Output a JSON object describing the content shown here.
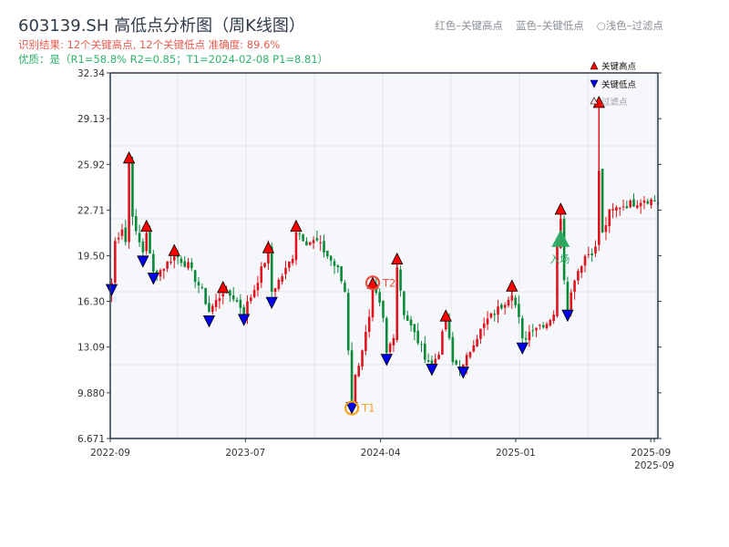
{
  "header": {
    "title": "603139.SH 高低点分析图（周K线图）",
    "result_line": "识别结果: 12个关键高点, 12个关键低点   准确度: 89.6%",
    "quality_line": "优质：是（R1=58.8%  R2=0.85；T1=2024-02-08 P1=8.81）",
    "legend_red": "红色–关键高点",
    "legend_blue": "蓝色–关键低点",
    "legend_light": "○浅色–过滤点"
  },
  "colors": {
    "up": "#e0141e",
    "down": "#0b8a3a",
    "high_marker": "#ff0000",
    "low_marker": "#0000ee",
    "entry": "#2aa860",
    "t_circle_t1": "#f5a020",
    "t_circle_t2": "#ee5040",
    "bg": "#f5f7fa"
  },
  "chart_data": {
    "type": "candlestick",
    "title": "603139.SH 高低点分析图（周K线图）",
    "grid": true,
    "legend_placement": "top-right",
    "legend": [
      "关键高点",
      "关键低点",
      "过滤点"
    ],
    "y_ticks": [
      "6.671",
      "9.880",
      "13.09",
      "16.30",
      "19.50",
      "22.71",
      "25.92",
      "29.13",
      "32.34"
    ],
    "ylim": [
      6.671,
      32.34
    ],
    "x_tick_labels": [
      "2022-09",
      "2023-07",
      "2024-04",
      "2025-01",
      "2025-09",
      "2025-09"
    ],
    "x_tick_index": [
      0,
      39,
      78,
      117,
      156,
      157
    ],
    "candle_count": 158,
    "close_path": [
      [
        0,
        17.6
      ],
      [
        1,
        20.5
      ],
      [
        3,
        21.5
      ],
      [
        4,
        20.5
      ],
      [
        5,
        26.0
      ],
      [
        6,
        22.5
      ],
      [
        7,
        21.0
      ],
      [
        9,
        19.8
      ],
      [
        10,
        21.2
      ],
      [
        11,
        19.5
      ],
      [
        12,
        18.3
      ],
      [
        14,
        18.5
      ],
      [
        16,
        19.0
      ],
      [
        18,
        19.6
      ],
      [
        22,
        18.8
      ],
      [
        26,
        17.0
      ],
      [
        28,
        15.6
      ],
      [
        30,
        16.3
      ],
      [
        32,
        17.0
      ],
      [
        35,
        16.6
      ],
      [
        38,
        15.6
      ],
      [
        41,
        17.2
      ],
      [
        45,
        19.8
      ],
      [
        46,
        17.0
      ],
      [
        50,
        18.5
      ],
      [
        52,
        19.5
      ],
      [
        53,
        21.3
      ],
      [
        56,
        20.5
      ],
      [
        59,
        20.5
      ],
      [
        62,
        19.5
      ],
      [
        65,
        18.5
      ],
      [
        67,
        17.0
      ],
      [
        68,
        13.0
      ],
      [
        69,
        9.3
      ],
      [
        70,
        11.0
      ],
      [
        72,
        13.0
      ],
      [
        74,
        15.0
      ],
      [
        75,
        17.3
      ],
      [
        77,
        16.0
      ],
      [
        78,
        15.0
      ],
      [
        79,
        12.6
      ],
      [
        81,
        14.0
      ],
      [
        82,
        18.8
      ],
      [
        84,
        15.5
      ],
      [
        87,
        14.0
      ],
      [
        90,
        12.5
      ],
      [
        92,
        11.8
      ],
      [
        94,
        12.8
      ],
      [
        96,
        15.0
      ],
      [
        98,
        12.0
      ],
      [
        101,
        11.7
      ],
      [
        104,
        13.5
      ],
      [
        108,
        15.0
      ],
      [
        112,
        16.0
      ],
      [
        115,
        17.0
      ],
      [
        117,
        15.0
      ],
      [
        118,
        13.5
      ],
      [
        121,
        14.5
      ],
      [
        125,
        14.8
      ],
      [
        127,
        15.5
      ],
      [
        128,
        20.0
      ],
      [
        129,
        22.3
      ],
      [
        130,
        18.0
      ],
      [
        131,
        15.7
      ],
      [
        133,
        18.0
      ],
      [
        136,
        19.5
      ],
      [
        139,
        20.0
      ],
      [
        140,
        25.5
      ],
      [
        141,
        21.0
      ],
      [
        143,
        22.5
      ],
      [
        146,
        23.0
      ],
      [
        150,
        23.2
      ],
      [
        153,
        23.5
      ],
      [
        157,
        23.3
      ]
    ],
    "key_highs": [
      [
        5,
        26.4
      ],
      [
        10,
        21.6
      ],
      [
        18,
        19.9
      ],
      [
        32,
        17.3
      ],
      [
        45,
        20.1
      ],
      [
        53,
        21.6
      ],
      [
        75,
        17.6
      ],
      [
        82,
        19.3
      ],
      [
        96,
        15.3
      ],
      [
        115,
        17.4
      ],
      [
        129,
        22.8
      ],
      [
        140,
        30.3
      ]
    ],
    "key_lows": [
      [
        0,
        17.1
      ],
      [
        9,
        19.1
      ],
      [
        12,
        17.9
      ],
      [
        28,
        14.9
      ],
      [
        38,
        15.0
      ],
      [
        46,
        16.2
      ],
      [
        69,
        8.81
      ],
      [
        79,
        12.2
      ],
      [
        92,
        11.5
      ],
      [
        101,
        11.3
      ],
      [
        118,
        13.0
      ],
      [
        131,
        15.3
      ]
    ],
    "annotations": [
      {
        "label": "T1",
        "index": 69,
        "price": 8.81
      },
      {
        "label": "T2",
        "index": 75,
        "price": 17.6
      },
      {
        "label": "入场",
        "index": 129,
        "price": 20.7
      }
    ]
  }
}
